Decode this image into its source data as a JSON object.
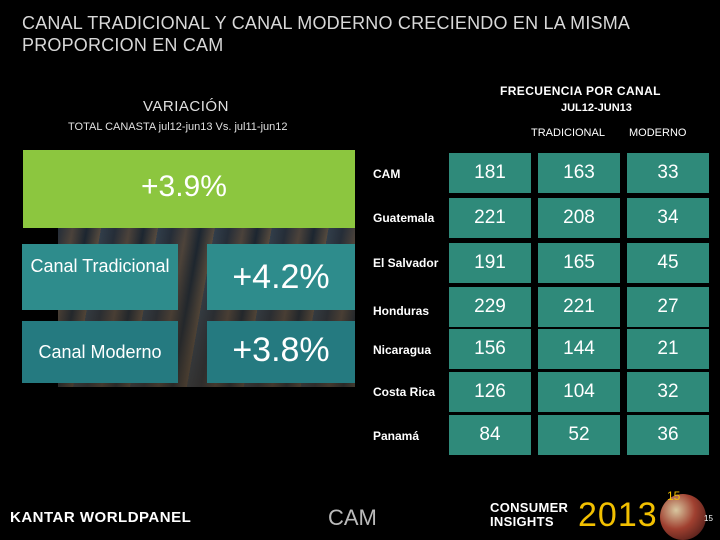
{
  "title": "CANAL TRADICIONAL Y CANAL MODERNO CRECIENDO EN LA MISMA PROPORCION EN CAM",
  "left": {
    "heading": "VARIACIÓN",
    "subheading": "TOTAL CANASTA jul12-jun13 Vs. jul11-jun12",
    "total": "+3.9%",
    "rows": [
      {
        "label": "Canal Tradicional",
        "value": "+4.2%"
      },
      {
        "label": "Canal Moderno",
        "value": "+3.8%"
      }
    ]
  },
  "right": {
    "heading": "FRECUENCIA POR CANAL",
    "period": "JUL12-JUN13",
    "col_tradicional": "TRADICIONAL",
    "col_moderno": "MODERNO",
    "rows": [
      {
        "country": "CAM",
        "total": "181",
        "tradicional": "163",
        "moderno": "33"
      },
      {
        "country": "Guatemala",
        "total": "221",
        "tradicional": "208",
        "moderno": "34"
      },
      {
        "country": "El Salvador",
        "total": "191",
        "tradicional": "165",
        "moderno": "45"
      },
      {
        "country": "Honduras",
        "total": "229",
        "tradicional": "221",
        "moderno": "27"
      },
      {
        "country": "Nicaragua",
        "total": "156",
        "tradicional": "144",
        "moderno": "21"
      },
      {
        "country": "Costa Rica",
        "total": "126",
        "tradicional": "104",
        "moderno": "32"
      },
      {
        "country": "Panamá",
        "total": "84",
        "tradicional": "52",
        "moderno": "36"
      }
    ]
  },
  "footer": {
    "brand": "KANTAR WORLDPANEL",
    "region": "CAM",
    "event_line1": "CONSUMER",
    "event_line2": "INSIGHTS",
    "year": "2013",
    "page_a": "15",
    "page_b": "15"
  },
  "colors": {
    "green": "#8cc63f",
    "teal": "#2e8c8c",
    "table_cell": "#2f8a7a",
    "year": "#f2c000"
  }
}
